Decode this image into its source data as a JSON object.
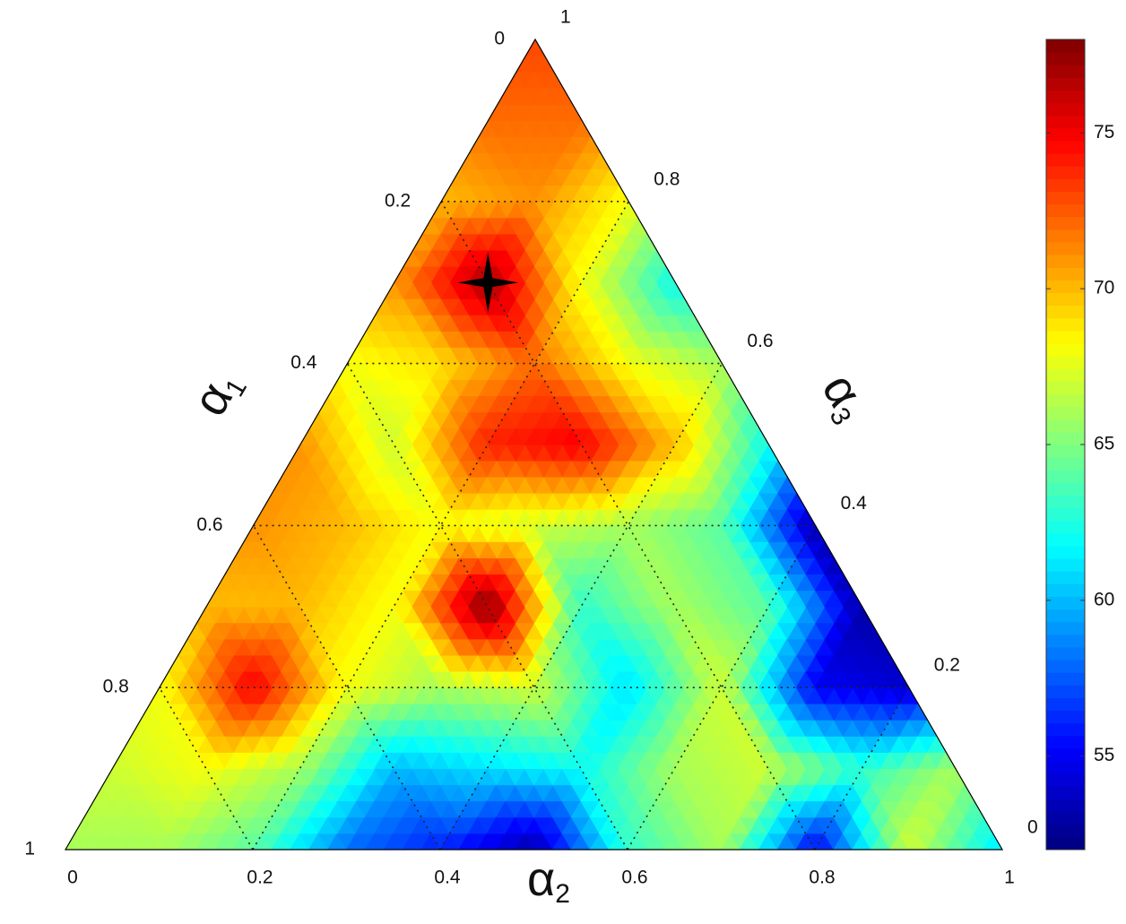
{
  "chart_data": {
    "type": "ternary-contour",
    "a1_title": {
      "symbol": "α",
      "subscript": "1"
    },
    "a2_title": {
      "symbol": "α",
      "subscript": "2"
    },
    "a3_title": {
      "symbol": "α",
      "subscript": "3"
    },
    "a1ticks": [
      0,
      0.2,
      0.4,
      0.6,
      0.8,
      1
    ],
    "a2ticks": [
      0,
      0.2,
      0.4,
      0.6,
      0.8,
      1
    ],
    "a3ticks": [
      0,
      0.2,
      0.4,
      0.6,
      0.8,
      1
    ],
    "values": [
      [
        66,
        66,
        64,
        58,
        56,
        53,
        63,
        66,
        55,
        67,
        61
      ],
      [
        67,
        68,
        66,
        60,
        61,
        62,
        66,
        67,
        63,
        66
      ],
      [
        68,
        75,
        68,
        66,
        67,
        61,
        67,
        55,
        54
      ],
      [
        70,
        70,
        68,
        78,
        63,
        66,
        64,
        53
      ],
      [
        71,
        70,
        68,
        67,
        66,
        64,
        53
      ],
      [
        71,
        67,
        74,
        75,
        70,
        62
      ],
      [
        68,
        69,
        72,
        68,
        66
      ],
      [
        71,
        77,
        68,
        62
      ],
      [
        70,
        71,
        68
      ],
      [
        72,
        72
      ],
      [
        73
      ]
    ],
    "marker": {
      "a1": 0.2,
      "a2": 0.1,
      "a3": 0.7
    },
    "colormap": "jet",
    "clim": [
      52,
      78
    ],
    "cticks": [
      55,
      60,
      65,
      70,
      75
    ],
    "grid": true
  }
}
